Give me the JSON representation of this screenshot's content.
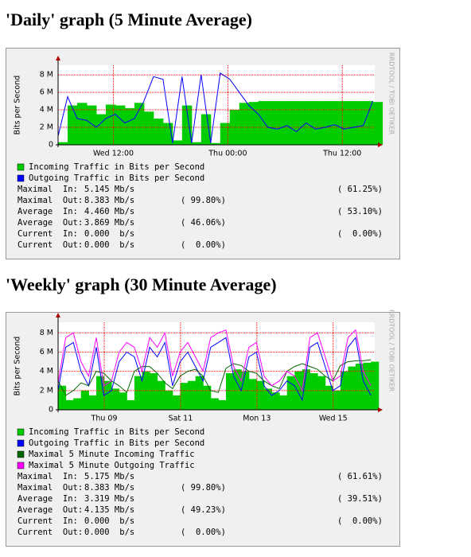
{
  "chart_data": [
    {
      "type": "line",
      "title": "'Daily' graph (5 Minute Average)",
      "y_label": "Bits per Second",
      "watermark": "RRDTOOL / TOBI OETIKER",
      "x": [
        0,
        1,
        2,
        3,
        4,
        5,
        6,
        7,
        8,
        9,
        10,
        11,
        12,
        13,
        14,
        15,
        16,
        17,
        18,
        19,
        20,
        21,
        22,
        23,
        24,
        25,
        26,
        27,
        28,
        29,
        30,
        31,
        32,
        33
      ],
      "xlim": [
        0,
        33.2
      ],
      "xticks": [
        {
          "value": 5.8,
          "label": "Wed 12:00"
        },
        {
          "value": 17.8,
          "label": "Thu 00:00"
        },
        {
          "value": 29.8,
          "label": "Thu 12:00"
        }
      ],
      "ylim": [
        0,
        9.1
      ],
      "yticks": [
        {
          "value": 0,
          "label": "0"
        },
        {
          "value": 2,
          "label": "2 M"
        },
        {
          "value": 4,
          "label": "4 M"
        },
        {
          "value": 6,
          "label": "6 M"
        },
        {
          "value": 8,
          "label": "8 M"
        }
      ],
      "grid": true,
      "series": [
        {
          "name": "Incoming Traffic in Bits per Second",
          "color": "#00cc00",
          "style": "area",
          "values": [
            0.3,
            4.5,
            4.8,
            4.5,
            3.5,
            4.6,
            4.5,
            4.2,
            4.8,
            3.8,
            3.0,
            2.5,
            0.5,
            4.5,
            0.3,
            3.5,
            0.2,
            2.5,
            4.0,
            4.8,
            4.9,
            5.0,
            5.0,
            5.0,
            5.0,
            5.0,
            5.0,
            5.0,
            5.0,
            5.0,
            5.0,
            5.0,
            5.0,
            4.9
          ]
        },
        {
          "name": "Outgoing Traffic in Bits per Second",
          "color": "#0000ff",
          "style": "line",
          "values": [
            1.0,
            5.5,
            3.0,
            2.8,
            2.0,
            3.0,
            3.5,
            2.5,
            3.0,
            5.0,
            7.8,
            7.5,
            0.2,
            7.8,
            0.2,
            8.0,
            0.2,
            8.2,
            7.5,
            6.0,
            4.5,
            3.5,
            2.0,
            1.8,
            2.2,
            1.5,
            2.5,
            1.8,
            2.0,
            2.3,
            1.8,
            2.0,
            2.2,
            5.0
          ]
        }
      ],
      "stats": [
        [
          "Maximal  In:",
          "5.145 Mb/s",
          "( 61.25%)"
        ],
        [
          "Maximal  Out:",
          "8.383 Mb/s",
          "( 99.80%)"
        ],
        [
          "Average  In:",
          "4.460 Mb/s",
          "( 53.10%)"
        ],
        [
          "Average  Out:",
          "3.869 Mb/s",
          "( 46.06%)"
        ],
        [
          "Current  In:",
          "0.000  b/s",
          "(  0.00%)"
        ],
        [
          "Current  Out:",
          "0.000  b/s",
          "(  0.00%)"
        ]
      ]
    },
    {
      "type": "line",
      "title": "'Weekly' graph (30 Minute Average)",
      "y_label": "Bits per Second",
      "watermark": "RRDTOOL / TOBI OETIKER",
      "x": [
        0,
        0.2,
        0.4,
        0.6,
        0.8,
        1,
        1.2,
        1.4,
        1.6,
        1.8,
        2,
        2.2,
        2.4,
        2.6,
        2.8,
        3,
        3.2,
        3.4,
        3.6,
        3.8,
        4,
        4.2,
        4.4,
        4.6,
        4.8,
        5,
        5.2,
        5.4,
        5.6,
        5.8,
        6,
        6.2,
        6.4,
        6.6,
        6.8,
        7,
        7.2,
        7.4,
        7.6,
        7.8,
        8,
        8.2
      ],
      "xlim": [
        0,
        8.3
      ],
      "xticks": [
        {
          "value": 1.21,
          "label": "Thu 09"
        },
        {
          "value": 3.21,
          "label": "Sat 11"
        },
        {
          "value": 5.21,
          "label": "Mon 13"
        },
        {
          "value": 7.21,
          "label": "Wed 15"
        }
      ],
      "ylim": [
        0,
        9.1
      ],
      "yticks": [
        {
          "value": 0,
          "label": "0"
        },
        {
          "value": 2,
          "label": "2 M"
        },
        {
          "value": 4,
          "label": "4 M"
        },
        {
          "value": 6,
          "label": "6 M"
        },
        {
          "value": 8,
          "label": "8 M"
        }
      ],
      "grid": true,
      "series": [
        {
          "name": "Incoming Traffic in Bits per Second",
          "color": "#00cc00",
          "style": "area",
          "values": [
            2.5,
            1.0,
            1.2,
            2.0,
            1.5,
            3.5,
            3.0,
            2.2,
            1.8,
            1.0,
            3.5,
            4.0,
            3.8,
            3.0,
            2.0,
            1.5,
            2.8,
            3.0,
            3.5,
            2.5,
            1.2,
            1.0,
            3.8,
            4.2,
            4.0,
            3.2,
            3.0,
            2.2,
            1.8,
            1.5,
            3.5,
            4.0,
            4.2,
            3.8,
            3.5,
            2.5,
            2.0,
            4.0,
            4.5,
            4.8,
            4.9,
            5.0
          ]
        },
        {
          "name": "Outgoing Traffic in Bits per Second",
          "color": "#0000ff",
          "style": "line",
          "values": [
            2.0,
            6.5,
            7.0,
            4.0,
            2.5,
            6.5,
            1.5,
            2.0,
            5.0,
            6.0,
            5.5,
            3.0,
            6.5,
            5.5,
            7.0,
            2.5,
            5.0,
            6.0,
            4.5,
            3.0,
            6.5,
            7.0,
            7.5,
            3.5,
            2.0,
            5.5,
            6.0,
            2.5,
            1.5,
            2.0,
            3.0,
            2.5,
            1.0,
            6.5,
            7.0,
            4.5,
            2.0,
            2.5,
            6.5,
            7.5,
            3.0,
            1.5
          ]
        },
        {
          "name": "Maximal 5 Minute Incoming Traffic",
          "color": "#006600",
          "style": "line",
          "values": [
            3.0,
            1.5,
            2.0,
            2.8,
            2.5,
            4.0,
            3.8,
            3.0,
            2.5,
            1.8,
            4.0,
            4.5,
            4.5,
            3.8,
            2.8,
            2.2,
            3.5,
            4.0,
            4.2,
            3.5,
            2.0,
            1.8,
            4.3,
            4.8,
            4.6,
            4.0,
            3.8,
            3.0,
            2.5,
            2.2,
            4.0,
            4.5,
            4.8,
            4.5,
            4.2,
            3.5,
            3.0,
            4.6,
            5.0,
            5.1,
            5.1,
            5.2
          ]
        },
        {
          "name": "Maximal 5 Minute Outgoing Traffic",
          "color": "#ff00ff",
          "style": "line",
          "values": [
            2.8,
            7.5,
            8.0,
            5.0,
            3.5,
            7.5,
            2.5,
            3.0,
            6.0,
            7.0,
            6.5,
            4.0,
            7.5,
            6.5,
            8.0,
            3.5,
            6.0,
            7.0,
            5.5,
            4.0,
            7.5,
            8.0,
            8.3,
            4.5,
            3.0,
            6.5,
            7.0,
            3.5,
            2.5,
            3.0,
            4.0,
            3.5,
            2.0,
            7.5,
            8.0,
            5.5,
            3.0,
            3.5,
            7.5,
            8.3,
            4.0,
            2.5
          ]
        }
      ],
      "stats": [
        [
          "Maximal  In:",
          "5.175 Mb/s",
          "( 61.61%)"
        ],
        [
          "Maximal  Out:",
          "8.383 Mb/s",
          "( 99.80%)"
        ],
        [
          "Average  In:",
          "3.319 Mb/s",
          "( 39.51%)"
        ],
        [
          "Average  Out:",
          "4.135 Mb/s",
          "( 49.23%)"
        ],
        [
          "Current  In:",
          "0.000  b/s",
          "(  0.00%)"
        ],
        [
          "Current  Out:",
          "0.000  b/s",
          "(  0.00%)"
        ]
      ]
    }
  ]
}
